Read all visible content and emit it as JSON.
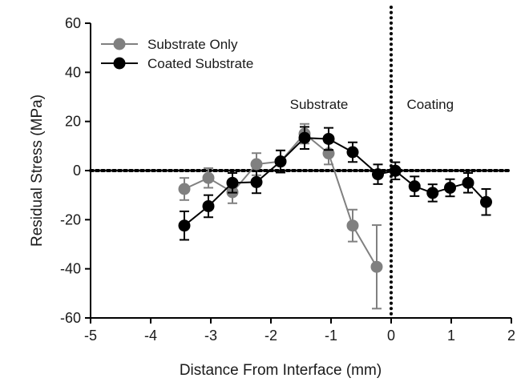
{
  "chart_data": {
    "type": "line",
    "title": "",
    "xlabel": "Distance From Interface (mm)",
    "ylabel": "Residual Stress (MPa)",
    "xlim": [
      -5,
      2
    ],
    "ylim": [
      -60,
      60
    ],
    "xticks": [
      -5,
      -4,
      -3,
      -2,
      -1,
      0,
      1,
      2
    ],
    "yticks": [
      -60,
      -40,
      -20,
      0,
      20,
      40,
      60
    ],
    "xtick_labels": [
      "-5",
      "-4",
      "-3",
      "-2",
      "-1",
      "0",
      "1",
      "2"
    ],
    "ytick_labels": [
      "-60",
      "-40",
      "-20",
      "0",
      "20",
      "40",
      "60"
    ],
    "grid": false,
    "legend_position": "top-left",
    "reference_lines": [
      {
        "orientation": "horizontal",
        "value": 0,
        "style": "dotted"
      },
      {
        "orientation": "vertical",
        "value": 0,
        "style": "dotted"
      }
    ],
    "annotations": [
      {
        "text": "Substrate",
        "x": -1.2,
        "y": 27
      },
      {
        "text": "Coating",
        "x": 0.65,
        "y": 27
      }
    ],
    "series": [
      {
        "name": "Substrate Only",
        "color": "#808080",
        "x": [
          -3.44,
          -3.04,
          -2.64,
          -2.24,
          -1.84,
          -1.44,
          -1.04,
          -0.64,
          -0.24
        ],
        "y": [
          -7.5,
          -3.0,
          -8.8,
          2.6,
          3.7,
          15.0,
          7.0,
          -22.4,
          -39.2
        ],
        "err": [
          4.5,
          4.0,
          4.5,
          4.5,
          4.5,
          4.0,
          4.5,
          6.5,
          17.0
        ]
      },
      {
        "name": "Coated Substrate",
        "color": "#000000",
        "x": [
          -3.44,
          -3.04,
          -2.64,
          -2.24,
          -1.84,
          -1.44,
          -1.04,
          -0.64,
          -0.22,
          0.07,
          0.39,
          0.69,
          0.98,
          1.28,
          1.58
        ],
        "y": [
          -22.4,
          -14.5,
          -5.0,
          -4.7,
          3.7,
          13.3,
          12.9,
          7.5,
          -1.5,
          -0.1,
          -6.4,
          -9.1,
          -7.0,
          -5.0,
          -12.8
        ],
        "err": [
          5.8,
          4.5,
          4.0,
          4.5,
          4.5,
          4.5,
          4.5,
          4.0,
          4.0,
          3.5,
          4.0,
          3.5,
          3.5,
          4.0,
          5.3
        ]
      }
    ]
  }
}
